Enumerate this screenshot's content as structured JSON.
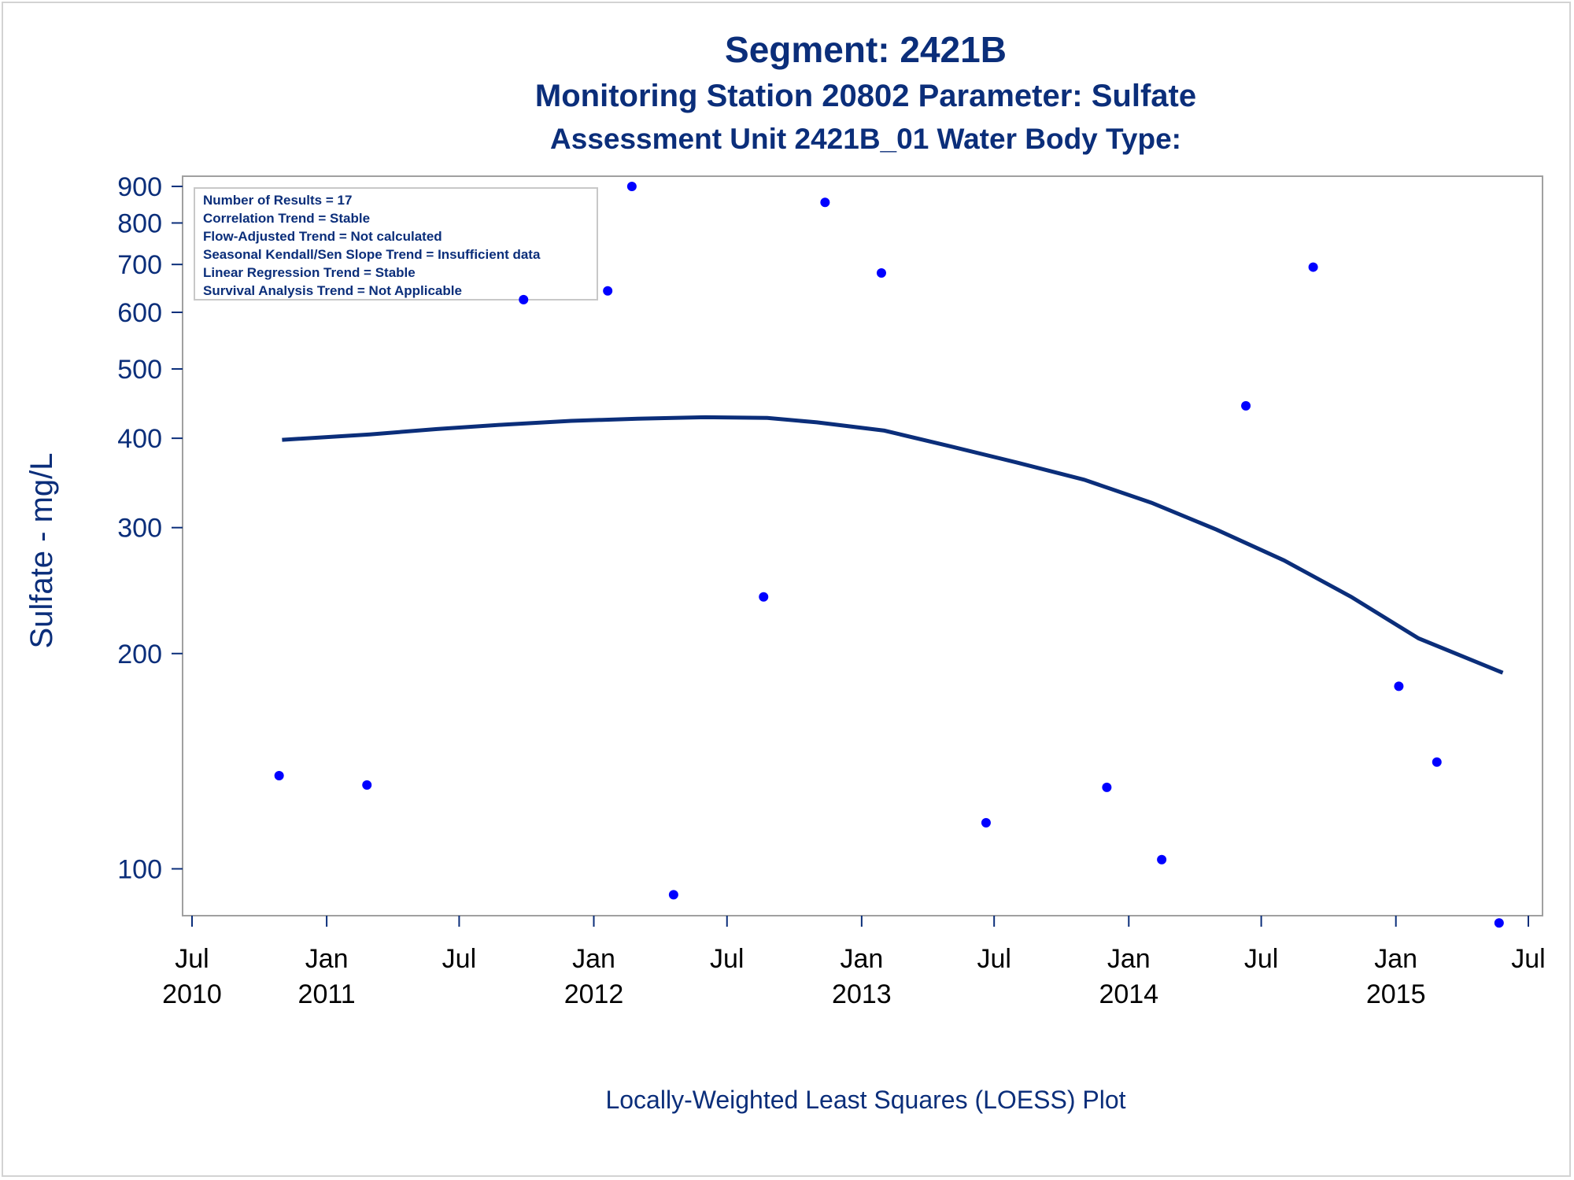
{
  "titles": {
    "line1": "Segment: 2421B",
    "line2": "Monitoring Station 20802 Parameter: Sulfate",
    "line3": "Assessment Unit 2421B_01   Water Body Type:"
  },
  "footnote": "Locally-Weighted Least Squares (LOESS) Plot",
  "colors": {
    "text": "#0b2e7a",
    "points": "#0000ff",
    "loess": "#0b2e7a",
    "frame": "#a0a0a0"
  },
  "inset": {
    "lines": [
      "Number of Results = 17",
      "Correlation Trend = Stable",
      "Flow-Adjusted Trend = Not calculated",
      "Seasonal Kendall/Sen Slope Trend = Insufficient data",
      "Linear Regression Trend = Stable",
      "Survival Analysis Trend = Not Applicable"
    ]
  },
  "chart_data": {
    "type": "scatter",
    "y_scale": "log",
    "ylabel": "Sulfate - mg/L",
    "xlabel": "",
    "xlim": [
      "2010-07-01",
      "2015-07-01"
    ],
    "ylim": [
      86,
      930
    ],
    "y_ticks": [
      100,
      200,
      300,
      400,
      500,
      600,
      700,
      800,
      900
    ],
    "x_ticks": [
      {
        "date": "2010-07-01",
        "label1": "Jul",
        "label2": "2010"
      },
      {
        "date": "2011-01-01",
        "label1": "Jan",
        "label2": "2011"
      },
      {
        "date": "2011-07-01",
        "label1": "Jul",
        "label2": ""
      },
      {
        "date": "2012-01-01",
        "label1": "Jan",
        "label2": "2012"
      },
      {
        "date": "2012-07-01",
        "label1": "Jul",
        "label2": ""
      },
      {
        "date": "2013-01-01",
        "label1": "Jan",
        "label2": "2013"
      },
      {
        "date": "2013-07-01",
        "label1": "Jul",
        "label2": ""
      },
      {
        "date": "2014-01-01",
        "label1": "Jan",
        "label2": "2014"
      },
      {
        "date": "2014-07-01",
        "label1": "Jul",
        "label2": ""
      },
      {
        "date": "2015-01-01",
        "label1": "Jan",
        "label2": "2015"
      },
      {
        "date": "2015-07-01",
        "label1": "Jul",
        "label2": ""
      }
    ],
    "grid": false,
    "series": [
      {
        "kind": "points",
        "points": [
          {
            "x": "2010-10-28",
            "y": 135
          },
          {
            "x": "2011-02-25",
            "y": 131
          },
          {
            "x": "2011-09-27",
            "y": 625
          },
          {
            "x": "2012-01-20",
            "y": 643
          },
          {
            "x": "2012-02-22",
            "y": 900
          },
          {
            "x": "2012-04-19",
            "y": 92
          },
          {
            "x": "2012-08-20",
            "y": 240
          },
          {
            "x": "2012-11-12",
            "y": 855
          },
          {
            "x": "2013-01-28",
            "y": 681
          },
          {
            "x": "2013-06-20",
            "y": 116
          },
          {
            "x": "2013-12-02",
            "y": 130
          },
          {
            "x": "2014-02-15",
            "y": 103
          },
          {
            "x": "2014-06-10",
            "y": 444
          },
          {
            "x": "2014-09-10",
            "y": 694
          },
          {
            "x": "2015-01-05",
            "y": 180
          },
          {
            "x": "2015-02-26",
            "y": 141
          },
          {
            "x": "2015-05-22",
            "y": 84
          }
        ]
      },
      {
        "kind": "loess",
        "points": [
          {
            "x": "2010-11-01",
            "y": 398
          },
          {
            "x": "2011-03-01",
            "y": 405
          },
          {
            "x": "2011-06-01",
            "y": 412
          },
          {
            "x": "2011-09-01",
            "y": 418
          },
          {
            "x": "2011-12-01",
            "y": 423
          },
          {
            "x": "2012-03-01",
            "y": 426
          },
          {
            "x": "2012-06-01",
            "y": 428
          },
          {
            "x": "2012-08-25",
            "y": 427
          },
          {
            "x": "2012-11-01",
            "y": 421
          },
          {
            "x": "2013-02-01",
            "y": 410
          },
          {
            "x": "2013-05-01",
            "y": 390
          },
          {
            "x": "2013-08-01",
            "y": 370
          },
          {
            "x": "2013-11-01",
            "y": 350
          },
          {
            "x": "2014-02-01",
            "y": 325
          },
          {
            "x": "2014-05-01",
            "y": 298
          },
          {
            "x": "2014-08-01",
            "y": 270
          },
          {
            "x": "2014-11-01",
            "y": 240
          },
          {
            "x": "2015-02-01",
            "y": 210
          },
          {
            "x": "2015-05-27",
            "y": 188
          }
        ]
      }
    ]
  }
}
